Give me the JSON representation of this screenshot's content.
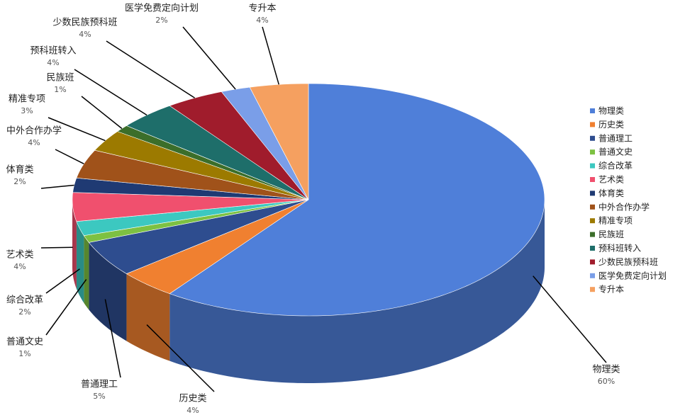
{
  "chart_data": {
    "type": "pie3d",
    "categories": [
      "物理类",
      "历史类",
      "普通理工",
      "普通文史",
      "综合改革",
      "艺术类",
      "体育类",
      "中外合作办学",
      "精准专项",
      "民族班",
      "预科班转入",
      "少数民族预科班",
      "医学免费定向计划",
      "专升本"
    ],
    "values": [
      60,
      4,
      5,
      1,
      2,
      4,
      2,
      4,
      3,
      1,
      4,
      4,
      2,
      4
    ],
    "value_labels": [
      "60%",
      "4%",
      "5%",
      "1%",
      "2%",
      "4%",
      "2%",
      "4%",
      "3%",
      "1%",
      "4%",
      "4%",
      "2%",
      "4%"
    ],
    "colors": [
      "#4f7fd9",
      "#f08030",
      "#2e4d8f",
      "#7dc142",
      "#3cc8c0",
      "#f0506e",
      "#1f3a73",
      "#a0521a",
      "#9c7a00",
      "#3b6e2a",
      "#1e6e6a",
      "#a01c2c",
      "#7a9ee8",
      "#f5a060"
    ],
    "legend": "right"
  }
}
